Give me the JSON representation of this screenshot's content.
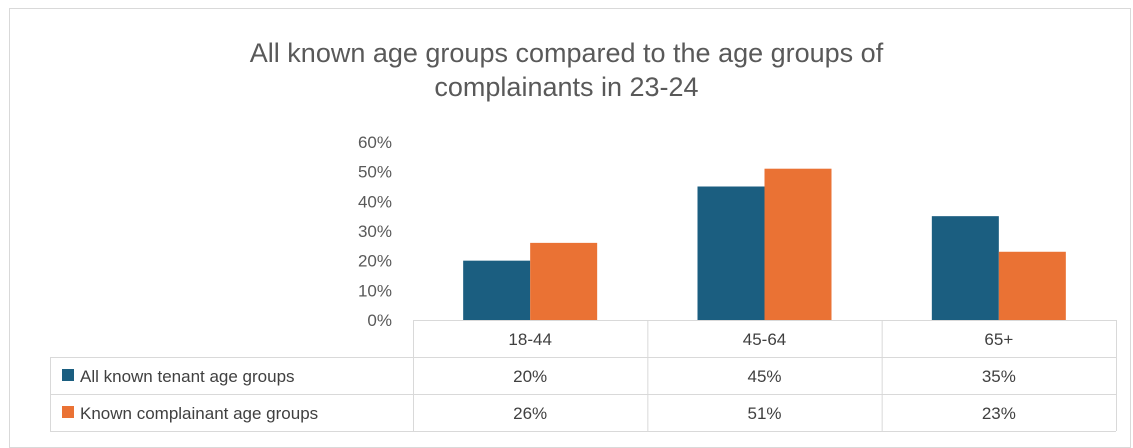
{
  "chart_data": {
    "type": "bar",
    "title_line1": "All known age groups compared to the age groups of",
    "title_line2": "complainants in 23-24",
    "categories": [
      "18-44",
      "45-64",
      "65+"
    ],
    "series": [
      {
        "name": "All known tenant age groups",
        "values": [
          20,
          45,
          35
        ],
        "labels": [
          "20%",
          "45%",
          "35%"
        ],
        "color": "#1b5e80"
      },
      {
        "name": "Known complainant age groups",
        "values": [
          26,
          51,
          23
        ],
        "labels": [
          "26%",
          "51%",
          "23%"
        ],
        "color": "#ea7234"
      }
    ],
    "y_ticks": [
      "0%",
      "10%",
      "20%",
      "30%",
      "40%",
      "50%",
      "60%"
    ],
    "ylim": [
      0,
      60
    ],
    "grid": false,
    "legend": "data-table"
  }
}
